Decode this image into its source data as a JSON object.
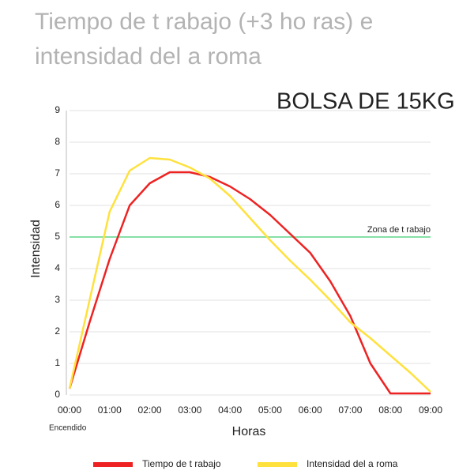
{
  "chart_data": {
    "type": "line",
    "title": "Tiempo de t rabajo (+3 ho ras) e intensidad del a roma",
    "subtitle": "BOLSA DE 15KG",
    "x_label": "Horas",
    "y_label": "Intensidad",
    "x": [
      0,
      0.5,
      1,
      1.5,
      2,
      2.5,
      3,
      3.5,
      4,
      4.5,
      5,
      5.5,
      6,
      6.5,
      7,
      7.5,
      8,
      8.5,
      9
    ],
    "series": [
      {
        "name": "Tiempo de t rabajo",
        "color": "#ee2222",
        "values": [
          0.2,
          2.3,
          4.3,
          6.0,
          6.7,
          7.05,
          7.05,
          6.9,
          6.6,
          6.2,
          5.7,
          5.1,
          4.5,
          3.6,
          2.5,
          1.0,
          0.05,
          0.05,
          0.05
        ]
      },
      {
        "name": "Intensidad del a roma",
        "color": "#ffe13d",
        "values": [
          0.2,
          3.0,
          5.8,
          7.1,
          7.5,
          7.45,
          7.2,
          6.85,
          6.3,
          5.6,
          4.9,
          4.25,
          3.65,
          3.0,
          2.3,
          1.8,
          1.25,
          0.7,
          0.1
        ]
      }
    ],
    "xlim": [
      0,
      9
    ],
    "xticks": [
      {
        "value": 0,
        "label": "00:00"
      },
      {
        "value": 1,
        "label": "01:00"
      },
      {
        "value": 2,
        "label": "02:00"
      },
      {
        "value": 3,
        "label": "03:00"
      },
      {
        "value": 4,
        "label": "04:00"
      },
      {
        "value": 5,
        "label": "05:00"
      },
      {
        "value": 6,
        "label": "06:00"
      },
      {
        "value": 7,
        "label": "07:00"
      },
      {
        "value": 8,
        "label": "08:00"
      },
      {
        "value": 9,
        "label": "09:00"
      }
    ],
    "ylim": [
      0,
      9
    ],
    "yticks": [
      0,
      1,
      2,
      3,
      4,
      5,
      6,
      7,
      8,
      9
    ],
    "grid": true,
    "reference_line": {
      "label": "Zona de t rabajo",
      "value": 5,
      "color": "#86e0a6"
    },
    "annotations": [
      {
        "text": "Encendido",
        "x": 0,
        "color": "#e07000"
      }
    ],
    "legend": "bottom"
  }
}
